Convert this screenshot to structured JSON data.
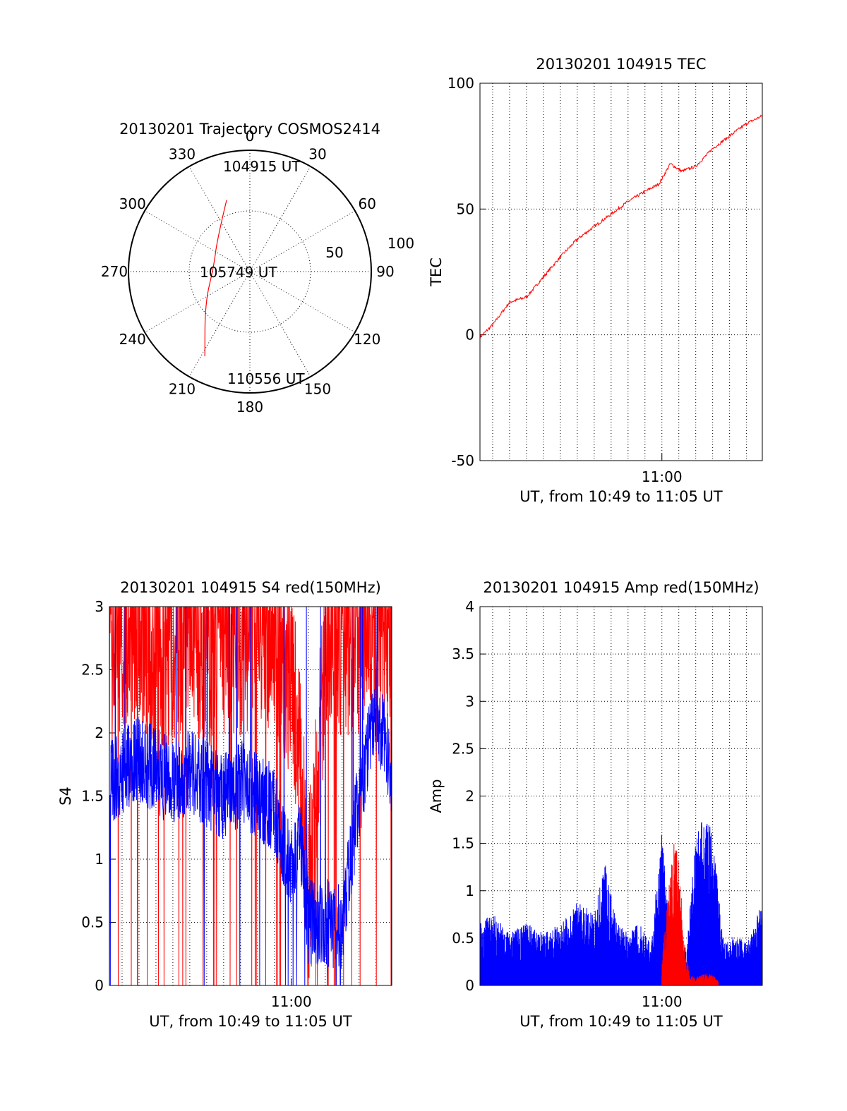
{
  "chart_data": [
    {
      "type": "polar",
      "title": "20130201 Trajectory COSMOS2414",
      "angle_labels": [
        "0",
        "30",
        "60",
        "90",
        "120",
        "150",
        "180",
        "210",
        "240",
        "270",
        "300",
        "330"
      ],
      "radial_labels": [
        "50",
        "100"
      ],
      "trajectory": {
        "color": "#ff0000",
        "points": [
          {
            "az": 342,
            "r": 62
          },
          {
            "az": 315,
            "r": 38
          },
          {
            "az": 278,
            "r": 30
          },
          {
            "az": 235,
            "r": 45
          },
          {
            "az": 208,
            "r": 79
          }
        ]
      },
      "annotations": [
        {
          "label": "104915 UT"
        },
        {
          "label": "105749 UT"
        },
        {
          "label": "110556 UT"
        }
      ]
    },
    {
      "type": "line",
      "title": "20130201 104915 TEC",
      "ylabel": "TEC",
      "xlabel": "UT, from 10:49 to 11:05 UT",
      "xlim": [
        "10:49:15",
        "11:05:56"
      ],
      "ylim": [
        -50,
        100
      ],
      "yticks": [
        "-50",
        "0",
        "50",
        "100"
      ],
      "xticks": [
        {
          "label": "11:00",
          "t": "11:00:00"
        }
      ],
      "series": [
        {
          "color": "#ff0000",
          "x": [
            "10:49:15",
            "10:50:00",
            "10:51:00",
            "10:52:00",
            "10:53:00",
            "10:54:00",
            "10:55:00",
            "10:56:00",
            "10:57:00",
            "10:58:00",
            "10:59:00",
            "10:59:50",
            "11:00:30",
            "11:01:10",
            "11:02:00",
            "11:03:00",
            "11:04:00",
            "11:05:00",
            "11:05:56"
          ],
          "values": [
            -1,
            4,
            13,
            15,
            23,
            31,
            38,
            43,
            48,
            53,
            57,
            60,
            68,
            65,
            67,
            74,
            79,
            84,
            87
          ]
        }
      ]
    },
    {
      "type": "line",
      "title": "20130201 104915 S4 red(150MHz)",
      "ylabel": "S4",
      "xlabel": "UT, from 10:49 to 11:05 UT",
      "xlim": [
        "10:49:15",
        "11:05:56"
      ],
      "ylim": [
        0,
        3
      ],
      "yticks": [
        "0",
        "0.5",
        "1",
        "1.5",
        "2",
        "2.5",
        "3"
      ],
      "xticks": [
        {
          "label": "11:00",
          "t": "11:00:00"
        }
      ],
      "series": [
        {
          "color": "#ff0000",
          "x": [
            "10:49:15",
            "10:50:00",
            "10:51:00",
            "10:52:00",
            "10:53:00",
            "10:54:00",
            "10:55:00",
            "10:56:00",
            "10:57:00",
            "10:58:00",
            "10:59:00",
            "11:00:00",
            "11:00:30",
            "11:01:00",
            "11:02:00",
            "11:03:00",
            "11:04:00",
            "11:05:00",
            "11:05:56"
          ],
          "values": [
            2.6,
            2.8,
            2.9,
            2.5,
            2.7,
            2.9,
            2.6,
            2.8,
            2.7,
            2.9,
            2.8,
            2.4,
            1.8,
            0.6,
            2.5,
            2.8,
            2.7,
            2.9,
            2.9
          ]
        },
        {
          "color": "#0000ff",
          "x": [
            "10:49:15",
            "10:50:00",
            "10:51:00",
            "10:52:00",
            "10:53:00",
            "10:54:00",
            "10:55:00",
            "10:56:00",
            "10:57:00",
            "10:58:00",
            "10:59:00",
            "11:00:00",
            "11:00:30",
            "11:01:00",
            "11:02:00",
            "11:03:00",
            "11:04:00",
            "11:05:00",
            "11:05:56"
          ],
          "values": [
            1.6,
            1.7,
            1.8,
            1.7,
            1.6,
            1.7,
            1.6,
            1.5,
            1.6,
            1.5,
            1.4,
            0.9,
            1.2,
            0.5,
            0.5,
            0.45,
            1.5,
            2.2,
            1.7
          ]
        }
      ]
    },
    {
      "type": "area",
      "title": "20130201 104915 Amp red(150MHz)",
      "ylabel": "Amp",
      "xlabel": "UT, from 10:49 to 11:05 UT",
      "xlim": [
        "10:49:15",
        "11:05:56"
      ],
      "ylim": [
        0,
        4
      ],
      "yticks": [
        "0",
        "0.5",
        "1",
        "1.5",
        "2",
        "2.5",
        "3",
        "3.5",
        "4"
      ],
      "xticks": [
        {
          "label": "11:00",
          "t": "11:00:00"
        }
      ],
      "series": [
        {
          "color": "#0000ff",
          "x": [
            "10:49:15",
            "10:50:00",
            "10:51:00",
            "10:52:00",
            "10:53:00",
            "10:54:00",
            "10:55:00",
            "10:56:00",
            "10:56:40",
            "10:57:20",
            "10:58:00",
            "10:58:40",
            "10:59:20",
            "11:00:00",
            "11:00:30",
            "11:01:00",
            "11:01:30",
            "11:02:00",
            "11:02:30",
            "11:03:00",
            "11:03:40",
            "11:04:20",
            "11:05:00",
            "11:05:56"
          ],
          "values": [
            0.6,
            0.7,
            0.5,
            0.6,
            0.5,
            0.6,
            0.8,
            0.7,
            1.2,
            0.6,
            0.5,
            0.6,
            0.4,
            1.5,
            0.4,
            0.3,
            0.4,
            1.5,
            1.6,
            1.5,
            0.4,
            0.5,
            0.4,
            0.8
          ]
        },
        {
          "color": "#ff0000",
          "x": [
            "11:00:00",
            "11:00:20",
            "11:00:40",
            "11:01:00",
            "11:01:20",
            "11:01:40",
            "11:02:00",
            "11:02:20",
            "11:02:40",
            "11:03:00",
            "11:03:20"
          ],
          "values": [
            0.3,
            0.8,
            1.5,
            1.2,
            0.4,
            0.1,
            0.08,
            0.1,
            0.12,
            0.1,
            0.05
          ]
        }
      ]
    }
  ]
}
